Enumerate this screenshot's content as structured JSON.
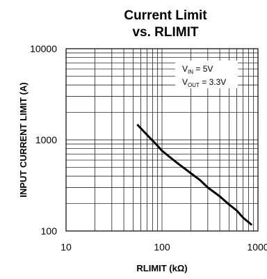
{
  "chart_data": {
    "type": "line",
    "title": "Current Limit",
    "subtitle": "vs. RLIMIT",
    "xlabel": "RLIMIT (kΩ)",
    "ylabel": "INPUT CURRENT LIMIT (A)",
    "x_scale": "log",
    "y_scale": "log",
    "xlim": [
      10,
      1000
    ],
    "ylim": [
      100,
      10000
    ],
    "x_ticks": [
      10,
      100,
      1000
    ],
    "x_tick_labels": [
      "10",
      "100",
      "1000"
    ],
    "y_ticks": [
      100,
      1000,
      10000
    ],
    "y_tick_labels": [
      "100",
      "1000",
      "10000"
    ],
    "grid": true,
    "annotations": {
      "vin_main": "V",
      "vin_sub": "IN",
      "vin_value": " = 5V",
      "vout_main": "V",
      "vout_sub": "OUT",
      "vout_value": " = 3.3V"
    },
    "series": [
      {
        "x": [
          56,
          70,
          90,
          100,
          120,
          150,
          200,
          250,
          300,
          400,
          500,
          600,
          700,
          850
        ],
        "y": [
          1450,
          1130,
          860,
          760,
          650,
          540,
          430,
          360,
          300,
          240,
          195,
          168,
          140,
          118
        ]
      }
    ]
  },
  "colors": {
    "line": "#000000",
    "grid": "#000000",
    "background": "#ffffff"
  }
}
